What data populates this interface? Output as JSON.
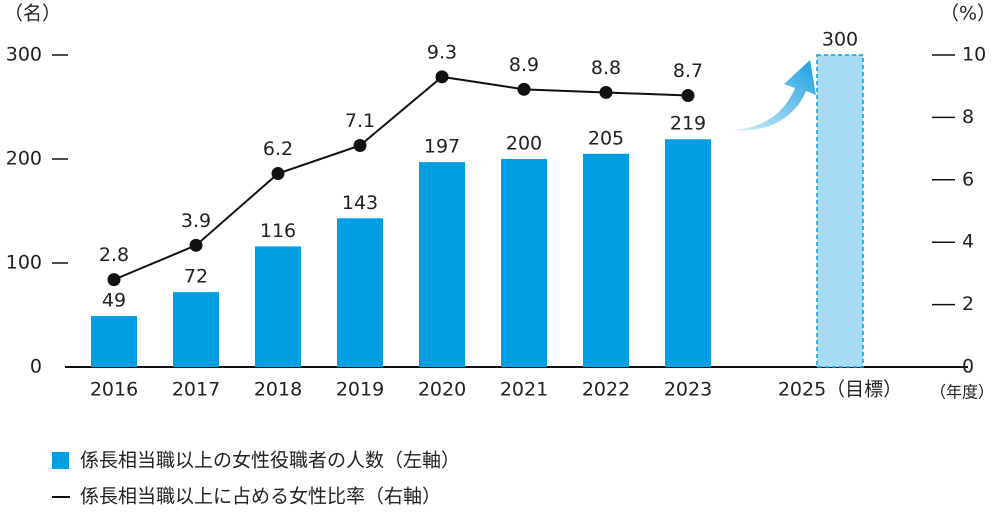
{
  "chart_data": {
    "type": "bar_line",
    "categories": [
      "2016",
      "2017",
      "2018",
      "2019",
      "2020",
      "2021",
      "2022",
      "2023",
      "2025（目標）"
    ],
    "ylabel": "（名）",
    "y2label": "（%）",
    "xlabel": "（年度）",
    "ylim": [
      0,
      300
    ],
    "yticks": [
      0,
      100,
      200,
      300
    ],
    "y2lim": [
      0,
      10
    ],
    "y2ticks": [
      0,
      2,
      4,
      6,
      8,
      10
    ],
    "series": [
      {
        "name": "係長相当職以上の女性役職者の人数（左軸）",
        "kind": "bar",
        "color": "#009fe3",
        "values": [
          49,
          72,
          116,
          143,
          197,
          200,
          205,
          219,
          300
        ],
        "point_colors": [
          "#009fe3",
          "#009fe3",
          "#009fe3",
          "#009fe3",
          "#009fe3",
          "#009fe3",
          "#009fe3",
          "#009fe3",
          "#a8dcf5"
        ],
        "point_styles": [
          "solid",
          "solid",
          "solid",
          "solid",
          "solid",
          "solid",
          "solid",
          "solid",
          "dashed"
        ]
      },
      {
        "name": "係長相当職以上に占める女性比率（右軸）",
        "kind": "line",
        "color": "#111111",
        "axis": "y2",
        "values": [
          2.8,
          3.9,
          6.2,
          7.1,
          9.3,
          8.9,
          8.8,
          8.7,
          null
        ]
      }
    ]
  }
}
